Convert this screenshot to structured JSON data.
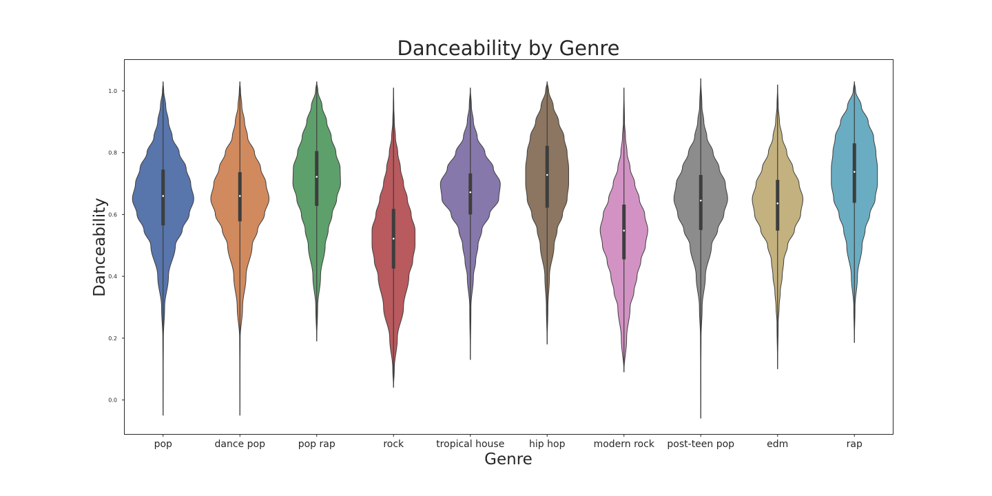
{
  "chart_data": {
    "type": "violin",
    "title": "Danceability by Genre",
    "xlabel": "Genre",
    "ylabel": "Danceability",
    "ylim": [
      -0.11,
      1.1
    ],
    "yticks": [
      "0.0",
      "0.2",
      "0.4",
      "0.6",
      "0.8",
      "1.0"
    ],
    "ytick_values": [
      0.0,
      0.2,
      0.4,
      0.6,
      0.8,
      1.0
    ],
    "grid": false,
    "series": [
      {
        "name": "pop",
        "color": "#5875ac",
        "min": -0.05,
        "max": 1.03,
        "q1": 0.565,
        "median": 0.66,
        "q3": 0.745,
        "density": [
          [
            -0.05,
            0
          ],
          [
            0.1,
            0.002
          ],
          [
            0.2,
            0.004
          ],
          [
            0.3,
            0.02
          ],
          [
            0.4,
            0.07
          ],
          [
            0.5,
            0.16
          ],
          [
            0.55,
            0.25
          ],
          [
            0.6,
            0.34
          ],
          [
            0.65,
            0.4
          ],
          [
            0.7,
            0.36
          ],
          [
            0.75,
            0.3
          ],
          [
            0.8,
            0.21
          ],
          [
            0.85,
            0.12
          ],
          [
            0.9,
            0.07
          ],
          [
            0.95,
            0.035
          ],
          [
            1.0,
            0.008
          ],
          [
            1.03,
            0
          ]
        ]
      },
      {
        "name": "dance pop",
        "color": "#d18a5e",
        "min": -0.05,
        "max": 1.03,
        "q1": 0.578,
        "median": 0.66,
        "q3": 0.737,
        "density": [
          [
            -0.05,
            0
          ],
          [
            0.1,
            0.002
          ],
          [
            0.2,
            0.004
          ],
          [
            0.3,
            0.035
          ],
          [
            0.4,
            0.08
          ],
          [
            0.5,
            0.16
          ],
          [
            0.55,
            0.23
          ],
          [
            0.6,
            0.32
          ],
          [
            0.65,
            0.38
          ],
          [
            0.7,
            0.34
          ],
          [
            0.75,
            0.27
          ],
          [
            0.8,
            0.19
          ],
          [
            0.85,
            0.1
          ],
          [
            0.9,
            0.06
          ],
          [
            0.95,
            0.025
          ],
          [
            1.0,
            0.008
          ],
          [
            1.03,
            0
          ]
        ]
      },
      {
        "name": "pop rap",
        "color": "#5ea06b",
        "min": 0.19,
        "max": 1.03,
        "q1": 0.628,
        "median": 0.722,
        "q3": 0.805,
        "density": [
          [
            0.19,
            0
          ],
          [
            0.3,
            0.012
          ],
          [
            0.4,
            0.05
          ],
          [
            0.5,
            0.11
          ],
          [
            0.55,
            0.15
          ],
          [
            0.6,
            0.2
          ],
          [
            0.65,
            0.26
          ],
          [
            0.7,
            0.31
          ],
          [
            0.75,
            0.305
          ],
          [
            0.8,
            0.25
          ],
          [
            0.85,
            0.19
          ],
          [
            0.9,
            0.13
          ],
          [
            0.95,
            0.07
          ],
          [
            1.0,
            0.015
          ],
          [
            1.03,
            0
          ]
        ]
      },
      {
        "name": "rock",
        "color": "#b85a5e",
        "min": 0.04,
        "max": 1.01,
        "q1": 0.425,
        "median": 0.522,
        "q3": 0.618,
        "density": [
          [
            0.04,
            0
          ],
          [
            0.1,
            0.01
          ],
          [
            0.2,
            0.05
          ],
          [
            0.3,
            0.13
          ],
          [
            0.4,
            0.2
          ],
          [
            0.45,
            0.25
          ],
          [
            0.5,
            0.28
          ],
          [
            0.55,
            0.28
          ],
          [
            0.6,
            0.23
          ],
          [
            0.65,
            0.18
          ],
          [
            0.7,
            0.13
          ],
          [
            0.75,
            0.09
          ],
          [
            0.8,
            0.055
          ],
          [
            0.85,
            0.025
          ],
          [
            0.9,
            0.01
          ],
          [
            0.95,
            0.004
          ],
          [
            1.01,
            0
          ]
        ]
      },
      {
        "name": "tropical house",
        "color": "#8678ab",
        "min": 0.13,
        "max": 1.01,
        "q1": 0.6,
        "median": 0.672,
        "q3": 0.733,
        "density": [
          [
            0.13,
            0
          ],
          [
            0.3,
            0.008
          ],
          [
            0.4,
            0.04
          ],
          [
            0.45,
            0.07
          ],
          [
            0.5,
            0.1
          ],
          [
            0.55,
            0.15
          ],
          [
            0.6,
            0.25
          ],
          [
            0.65,
            0.37
          ],
          [
            0.7,
            0.39
          ],
          [
            0.75,
            0.3
          ],
          [
            0.8,
            0.19
          ],
          [
            0.85,
            0.09
          ],
          [
            0.9,
            0.04
          ],
          [
            0.95,
            0.014
          ],
          [
            1.01,
            0
          ]
        ]
      },
      {
        "name": "hip hop",
        "color": "#8c7661",
        "min": 0.18,
        "max": 1.03,
        "q1": 0.622,
        "median": 0.728,
        "q3": 0.822,
        "density": [
          [
            0.18,
            0
          ],
          [
            0.3,
            0.01
          ],
          [
            0.4,
            0.03
          ],
          [
            0.5,
            0.09
          ],
          [
            0.55,
            0.13
          ],
          [
            0.6,
            0.2
          ],
          [
            0.65,
            0.26
          ],
          [
            0.7,
            0.28
          ],
          [
            0.75,
            0.28
          ],
          [
            0.8,
            0.26
          ],
          [
            0.85,
            0.22
          ],
          [
            0.9,
            0.15
          ],
          [
            0.95,
            0.08
          ],
          [
            1.0,
            0.02
          ],
          [
            1.03,
            0
          ]
        ]
      },
      {
        "name": "modern rock",
        "color": "#d293c4",
        "min": 0.09,
        "max": 1.01,
        "q1": 0.455,
        "median": 0.548,
        "q3": 0.632,
        "density": [
          [
            0.09,
            0
          ],
          [
            0.2,
            0.035
          ],
          [
            0.3,
            0.08
          ],
          [
            0.35,
            0.13
          ],
          [
            0.4,
            0.17
          ],
          [
            0.45,
            0.22
          ],
          [
            0.5,
            0.28
          ],
          [
            0.55,
            0.31
          ],
          [
            0.6,
            0.27
          ],
          [
            0.65,
            0.2
          ],
          [
            0.7,
            0.14
          ],
          [
            0.75,
            0.08
          ],
          [
            0.8,
            0.04
          ],
          [
            0.85,
            0.02
          ],
          [
            0.9,
            0.007
          ],
          [
            1.01,
            0
          ]
        ]
      },
      {
        "name": "post-teen pop",
        "color": "#8c8c8c",
        "min": -0.06,
        "max": 1.04,
        "q1": 0.55,
        "median": 0.645,
        "q3": 0.728,
        "density": [
          [
            -0.06,
            0
          ],
          [
            0.1,
            0.002
          ],
          [
            0.2,
            0.004
          ],
          [
            0.3,
            0.018
          ],
          [
            0.4,
            0.06
          ],
          [
            0.5,
            0.14
          ],
          [
            0.55,
            0.22
          ],
          [
            0.6,
            0.3
          ],
          [
            0.65,
            0.35
          ],
          [
            0.7,
            0.32
          ],
          [
            0.75,
            0.24
          ],
          [
            0.8,
            0.16
          ],
          [
            0.85,
            0.08
          ],
          [
            0.9,
            0.04
          ],
          [
            0.95,
            0.015
          ],
          [
            1.04,
            0
          ]
        ]
      },
      {
        "name": "edm",
        "color": "#c3b27f",
        "min": 0.1,
        "max": 1.02,
        "q1": 0.548,
        "median": 0.636,
        "q3": 0.712,
        "density": [
          [
            0.1,
            0
          ],
          [
            0.25,
            0.008
          ],
          [
            0.3,
            0.02
          ],
          [
            0.35,
            0.035
          ],
          [
            0.4,
            0.06
          ],
          [
            0.45,
            0.08
          ],
          [
            0.5,
            0.13
          ],
          [
            0.55,
            0.22
          ],
          [
            0.6,
            0.3
          ],
          [
            0.65,
            0.33
          ],
          [
            0.7,
            0.28
          ],
          [
            0.75,
            0.2
          ],
          [
            0.8,
            0.12
          ],
          [
            0.85,
            0.06
          ],
          [
            0.9,
            0.025
          ],
          [
            0.95,
            0.008
          ],
          [
            1.02,
            0
          ]
        ]
      },
      {
        "name": "rap",
        "color": "#6aadc3",
        "min": 0.185,
        "max": 1.03,
        "q1": 0.638,
        "median": 0.738,
        "q3": 0.83,
        "density": [
          [
            0.185,
            0
          ],
          [
            0.3,
            0.008
          ],
          [
            0.4,
            0.04
          ],
          [
            0.5,
            0.1
          ],
          [
            0.55,
            0.14
          ],
          [
            0.6,
            0.2
          ],
          [
            0.65,
            0.27
          ],
          [
            0.7,
            0.3
          ],
          [
            0.75,
            0.3
          ],
          [
            0.8,
            0.28
          ],
          [
            0.85,
            0.25
          ],
          [
            0.9,
            0.18
          ],
          [
            0.95,
            0.09
          ],
          [
            1.0,
            0.015
          ],
          [
            1.03,
            0
          ]
        ]
      }
    ]
  }
}
